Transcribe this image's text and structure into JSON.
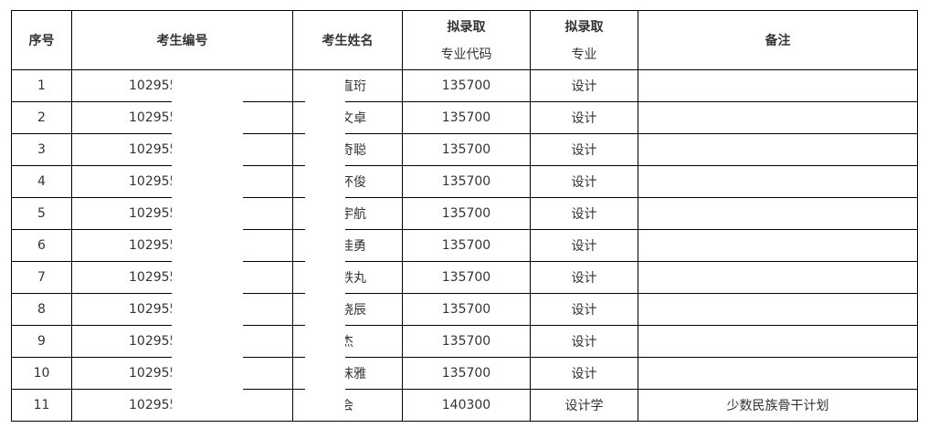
{
  "headers": {
    "seq": "序号",
    "id": "考生编号",
    "name": "考生姓名",
    "code_line1": "拟录取",
    "code_line2": "专业代码",
    "major_line1": "拟录取",
    "major_line2": "专业",
    "note": "备注"
  },
  "rows": [
    {
      "seq": "1",
      "id": "102955",
      "name": "直珩",
      "code": "135700",
      "major": "设计",
      "note": ""
    },
    {
      "seq": "2",
      "id": "102955",
      "name": "文卓",
      "code": "135700",
      "major": "设计",
      "note": ""
    },
    {
      "seq": "3",
      "id": "102955",
      "name": "奇聪",
      "code": "135700",
      "major": "设计",
      "note": ""
    },
    {
      "seq": "4",
      "id": "102955",
      "name": "怀俊",
      "code": "135700",
      "major": "设计",
      "note": ""
    },
    {
      "seq": "5",
      "id": "102955",
      "name": "宇航",
      "code": "135700",
      "major": "设计",
      "note": ""
    },
    {
      "seq": "6",
      "id": "102955",
      "name": "佳勇",
      "code": "135700",
      "major": "设计",
      "note": ""
    },
    {
      "seq": "7",
      "id": "102955",
      "name": "铁丸",
      "code": "135700",
      "major": "设计",
      "note": ""
    },
    {
      "seq": "8",
      "id": "102955",
      "name": "晓辰",
      "code": "135700",
      "major": "设计",
      "note": ""
    },
    {
      "seq": "9",
      "id": "102955",
      "name": "杰",
      "code": "135700",
      "major": "设计",
      "note": ""
    },
    {
      "seq": "10",
      "id": "102955",
      "name": "沫雅",
      "code": "135700",
      "major": "设计",
      "note": ""
    },
    {
      "seq": "11",
      "id": "102955",
      "name": "会",
      "code": "140300",
      "major": "设计学",
      "note": "少数民族骨干计划"
    }
  ]
}
